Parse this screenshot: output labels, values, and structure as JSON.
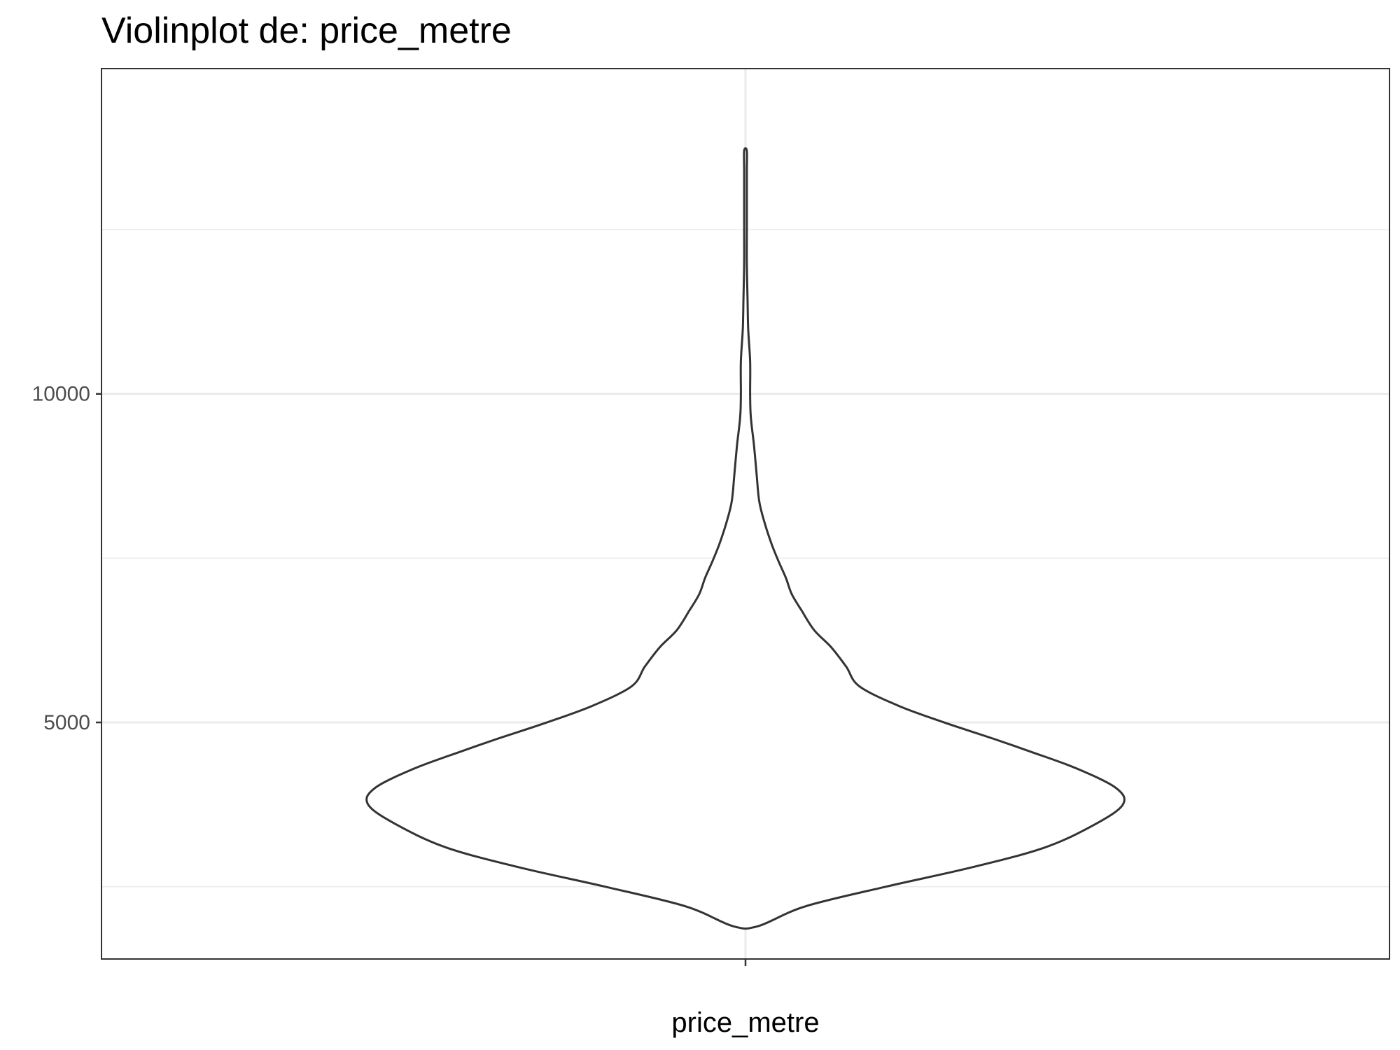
{
  "chart_data": {
    "type": "violin",
    "title": "Violinplot de: price_metre",
    "xlabel": "price_metre",
    "ylabel": "",
    "categories": [
      "price_metre"
    ],
    "ylim": [
      1400,
      14950
    ],
    "y_ticks": [
      5000,
      10000
    ],
    "y_tick_labels": [
      "5000",
      "10000"
    ],
    "grid": true,
    "colors": {
      "outline": "#333333",
      "fill": "#ffffff",
      "grid": "#ebebeb",
      "panel_border": "#333333"
    },
    "density": {
      "y": [
        1900,
        2200,
        2500,
        2800,
        3100,
        3450,
        3750,
        4000,
        4300,
        4550,
        4750,
        5000,
        5250,
        5550,
        5850,
        6150,
        6400,
        6700,
        6950,
        7200,
        7450,
        7700,
        8000,
        8350,
        8750,
        9200,
        9650,
        10000,
        10500,
        11000,
        11500,
        12000,
        12500,
        13000,
        13400,
        13700
      ],
      "half_width": [
        0.019,
        0.09,
        0.212,
        0.344,
        0.453,
        0.528,
        0.57,
        0.56,
        0.5,
        0.432,
        0.375,
        0.3,
        0.232,
        0.172,
        0.152,
        0.129,
        0.104,
        0.085,
        0.07,
        0.061,
        0.05,
        0.04,
        0.03,
        0.021,
        0.017,
        0.013,
        0.008,
        0.007,
        0.007,
        0.004,
        0.003,
        0.002,
        0.002,
        0.002,
        0.002,
        0.002
      ]
    }
  }
}
